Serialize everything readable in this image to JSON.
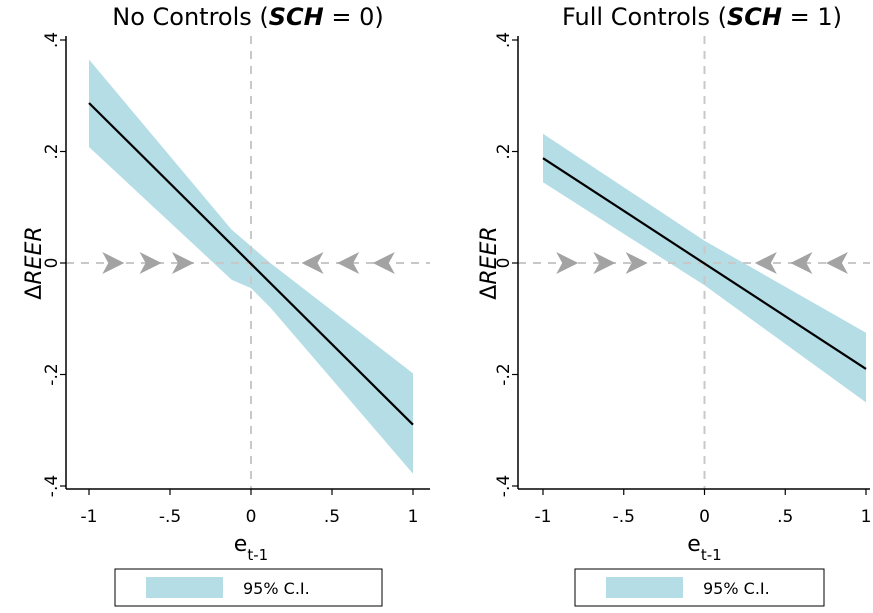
{
  "chart_data": [
    {
      "type": "line",
      "title_main": "No Controls (",
      "title_var": "SCH",
      "title_rest": " = 0)",
      "xlabel_main": "e",
      "xlabel_sub": "t-1",
      "ylabel_delta": "Δ",
      "ylabel_var": "REER",
      "xlim": [
        -1,
        1
      ],
      "ylim": [
        -0.4,
        0.4
      ],
      "x_ticks": [
        -1,
        -0.5,
        0,
        0.5,
        1
      ],
      "x_tick_labels": [
        "-1",
        "-.5",
        "0",
        ".5",
        "1"
      ],
      "y_ticks": [
        -0.4,
        -0.2,
        0,
        0.2,
        0.4
      ],
      "y_tick_labels": [
        "-.4",
        "-.2",
        "0",
        ".2",
        ".4"
      ],
      "grid": false,
      "reference_lines": {
        "x": 0,
        "y": 0
      },
      "series": [
        {
          "x": [
            -1,
            1
          ],
          "values": [
            0.287,
            -0.29
          ]
        }
      ],
      "ci_band": {
        "x": [
          -1,
          -0.12,
          0,
          0.12,
          1
        ],
        "upper": [
          0.365,
          0.06,
          0.03,
          0.0,
          -0.198
        ],
        "lower": [
          0.208,
          -0.03,
          -0.045,
          -0.08,
          -0.378
        ]
      },
      "arrows": {
        "right": [
          -0.85,
          -0.62,
          -0.42
        ],
        "left": [
          0.38,
          0.6,
          0.82
        ],
        "y": 0
      },
      "legend": {
        "label": "95% C.I.",
        "position": "bottom"
      },
      "colors": {
        "band": "#b4dde6",
        "line": "#000000",
        "arrow": "#a3a3a3",
        "ref": "#c8c8c8"
      }
    },
    {
      "type": "line",
      "title_main": "Full Controls (",
      "title_var": "SCH",
      "title_rest": " = 1)",
      "xlabel_main": "e",
      "xlabel_sub": "t-1",
      "ylabel_delta": "Δ",
      "ylabel_var": "REER",
      "xlim": [
        -1,
        1
      ],
      "ylim": [
        -0.4,
        0.4
      ],
      "x_ticks": [
        -1,
        -0.5,
        0,
        0.5,
        1
      ],
      "x_tick_labels": [
        "-1",
        "-.5",
        "0",
        ".5",
        "1"
      ],
      "y_ticks": [
        -0.4,
        -0.2,
        0,
        0.2,
        0.4
      ],
      "y_tick_labels": [
        "-.4",
        "-.2",
        "0",
        ".2",
        ".4"
      ],
      "grid": false,
      "reference_lines": {
        "x": 0,
        "y": 0
      },
      "series": [
        {
          "x": [
            -1,
            1
          ],
          "values": [
            0.188,
            -0.19
          ]
        }
      ],
      "ci_band": {
        "x": [
          -1,
          0,
          1
        ],
        "upper": [
          0.232,
          0.04,
          -0.125
        ],
        "lower": [
          0.145,
          -0.04,
          -0.25
        ]
      },
      "arrows": {
        "right": [
          -0.85,
          -0.62,
          -0.42
        ],
        "left": [
          0.38,
          0.6,
          0.82
        ],
        "y": 0
      },
      "legend": {
        "label": "95% C.I.",
        "position": "bottom"
      },
      "colors": {
        "band": "#b4dde6",
        "line": "#000000",
        "arrow": "#a3a3a3",
        "ref": "#c8c8c8"
      }
    }
  ]
}
